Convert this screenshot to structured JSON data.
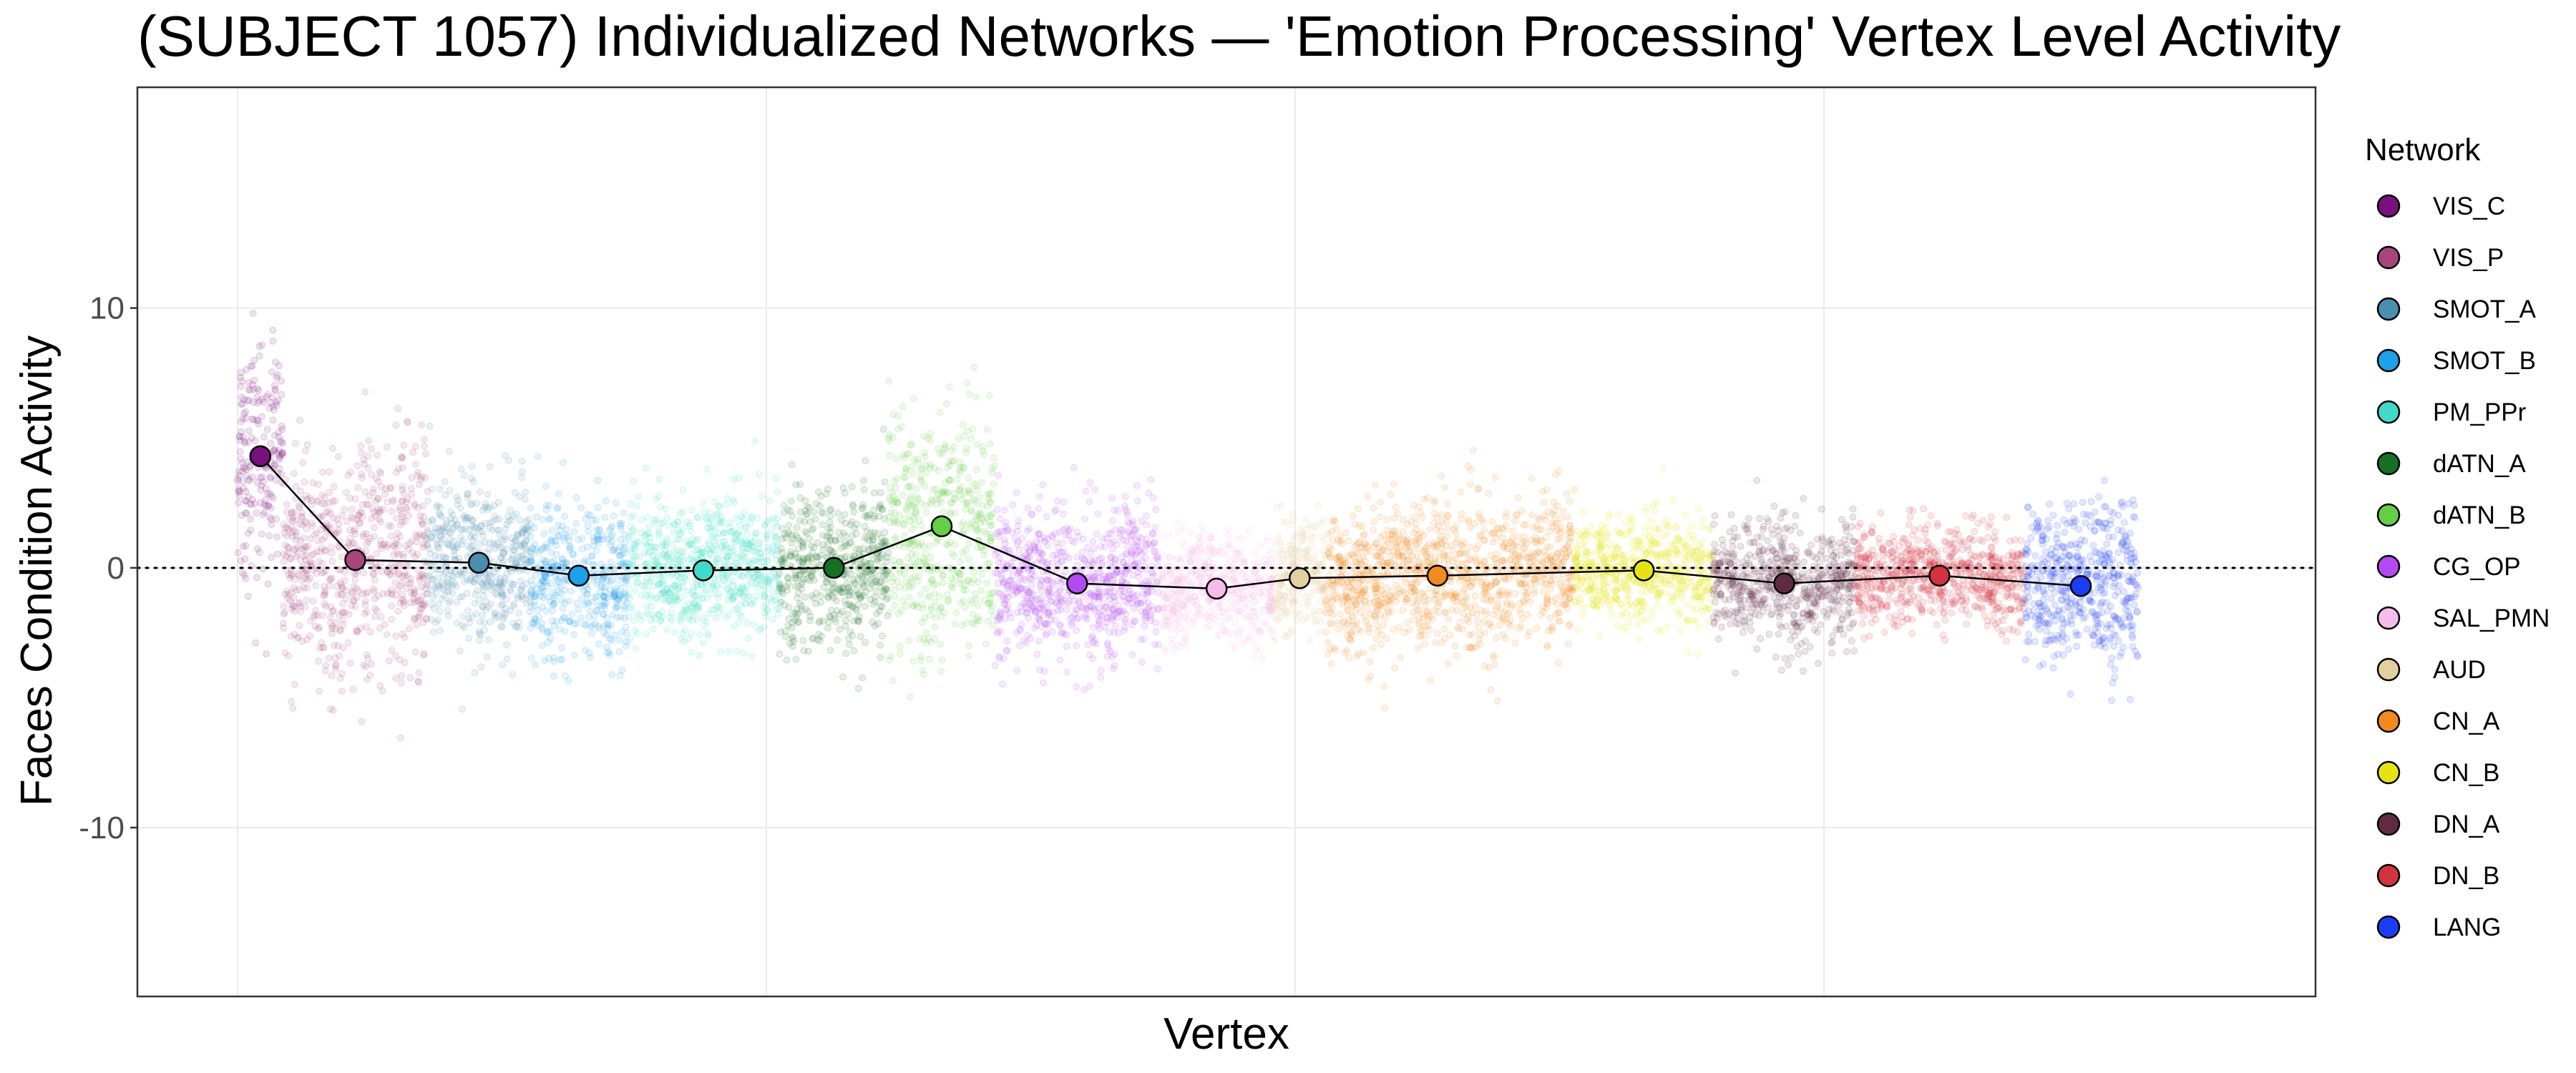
{
  "chart_data": {
    "type": "scatter",
    "title": "(SUBJECT 1057) Individualized Networks — 'Emotion Processing' Vertex Level Activity",
    "xlabel": "Vertex",
    "ylabel": "Faces Condition Activity",
    "ylim": [
      -16.5,
      18.5
    ],
    "y_ticks": [
      {
        "value": -10,
        "label": "-10"
      },
      {
        "value": 0,
        "label": "0"
      },
      {
        "value": 10,
        "label": "10"
      }
    ],
    "x_tick_labels": "none",
    "grid": true,
    "reference_line": {
      "y": 0,
      "style": "dotted"
    },
    "legend": {
      "title": "Network",
      "placement": "right"
    },
    "series": [
      {
        "name": "VIS_C",
        "color": "#7A0F7F",
        "range": [
          0.0,
          2.3
        ],
        "mean": 4.3,
        "spread": 2.2,
        "mean_at": 0.5
      },
      {
        "name": "VIS_P",
        "color": "#A8457D",
        "range": [
          2.3,
          9.6
        ],
        "mean": 0.3,
        "spread": 2.3,
        "mean_at": 0.5
      },
      {
        "name": "SMOT_A",
        "color": "#4A8EB0",
        "range": [
          9.6,
          14.8
        ],
        "mean": 0.2,
        "spread": 1.5,
        "mean_at": 0.5
      },
      {
        "name": "SMOT_B",
        "color": "#1EA0EA",
        "range": [
          14.8,
          19.7
        ],
        "mean": -0.3,
        "spread": 1.4,
        "mean_at": 0.5
      },
      {
        "name": "PM_PPr",
        "color": "#40DBC8",
        "range": [
          19.7,
          27.4
        ],
        "mean": -0.1,
        "spread": 1.3,
        "mean_at": 0.5
      },
      {
        "name": "dATN_A",
        "color": "#157025",
        "range": [
          27.4,
          32.9
        ],
        "mean": 0.0,
        "spread": 1.5,
        "mean_at": 0.5
      },
      {
        "name": "dATN_B",
        "color": "#64CF45",
        "range": [
          32.9,
          38.3
        ],
        "mean": 1.6,
        "spread": 2.3,
        "mean_at": 0.5
      },
      {
        "name": "CG_OP",
        "color": "#B44BF2",
        "range": [
          38.3,
          46.6
        ],
        "mean": -0.6,
        "spread": 1.4,
        "mean_at": 0.5
      },
      {
        "name": "SAL_PMN",
        "color": "#F6BCE9",
        "range": [
          46.6,
          52.4
        ],
        "mean": -0.8,
        "spread": 1.0,
        "mean_at": 0.5
      },
      {
        "name": "AUD",
        "color": "#E4CFA0",
        "range": [
          52.4,
          55.0
        ],
        "mean": -0.4,
        "spread": 1.1,
        "mean_at": 0.5
      },
      {
        "name": "CN_A",
        "color": "#F28A1F",
        "range": [
          55.0,
          67.6
        ],
        "mean": -0.3,
        "spread": 1.4,
        "mean_at": 0.45
      },
      {
        "name": "CN_B",
        "color": "#E6E313",
        "range": [
          67.6,
          74.6
        ],
        "mean": -0.1,
        "spread": 1.0,
        "mean_at": 0.5
      },
      {
        "name": "DN_A",
        "color": "#5F2B40",
        "range": [
          74.6,
          81.8
        ],
        "mean": -0.6,
        "spread": 1.2,
        "mean_at": 0.5
      },
      {
        "name": "DN_B",
        "color": "#D2343F",
        "range": [
          81.8,
          90.3
        ],
        "mean": -0.3,
        "spread": 0.9,
        "mean_at": 0.5
      },
      {
        "name": "LANG",
        "color": "#1A3DF5",
        "range": [
          90.3,
          96.1
        ],
        "mean": -0.7,
        "spread": 1.5,
        "mean_at": 0.5
      }
    ]
  }
}
